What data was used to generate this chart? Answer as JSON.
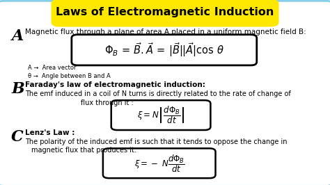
{
  "title": "Laws of Electromagnetic Induction",
  "title_bg": "#FFE800",
  "bg_color": "#FFFFFF",
  "border_color": "#87CEEB",
  "section_A_label": "A",
  "section_A_title": "Magnetic flux through a plane of area A placed in a uniform magnetic field B:",
  "section_A_formula": "$\\Phi_{B}\\, =\\, \\vec{B}.\\vec{A}\\, =\\, |\\vec{B}||\\vec{A}|\\cos\\,\\theta$",
  "section_A_note1": "A →  Area vector",
  "section_A_note2": "θ →  Angle between B and A",
  "section_B_label": "B",
  "section_B_title": "Faraday's law of electromagnetic induction:",
  "section_B_text1": "The emf induced in a coil of N turns is directly related to the rate of change of",
  "section_B_text2": "flux through it :",
  "section_B_formula": "$\\xi=N\\left|\\dfrac{d\\Phi_B}{dt}\\right|$",
  "section_C_label": "C",
  "section_C_title": "Lenz's Law :",
  "section_C_text1": "The polarity of the induced emf is such that it tends to oppose the change in",
  "section_C_text2": "magnetic flux that produces it.",
  "section_C_formula": "$\\xi= -\\ N\\dfrac{d\\Phi_B}{dt}$",
  "title_fontsize": 11.5,
  "label_fontsize_A": 16,
  "label_fontsize_B": 16,
  "label_fontsize_C": 16,
  "heading_fontsize": 7.5,
  "text_fontsize": 7.0,
  "formula_A_fontsize": 10.5,
  "formula_BC_fontsize": 8.5,
  "note_fontsize": 6.0
}
